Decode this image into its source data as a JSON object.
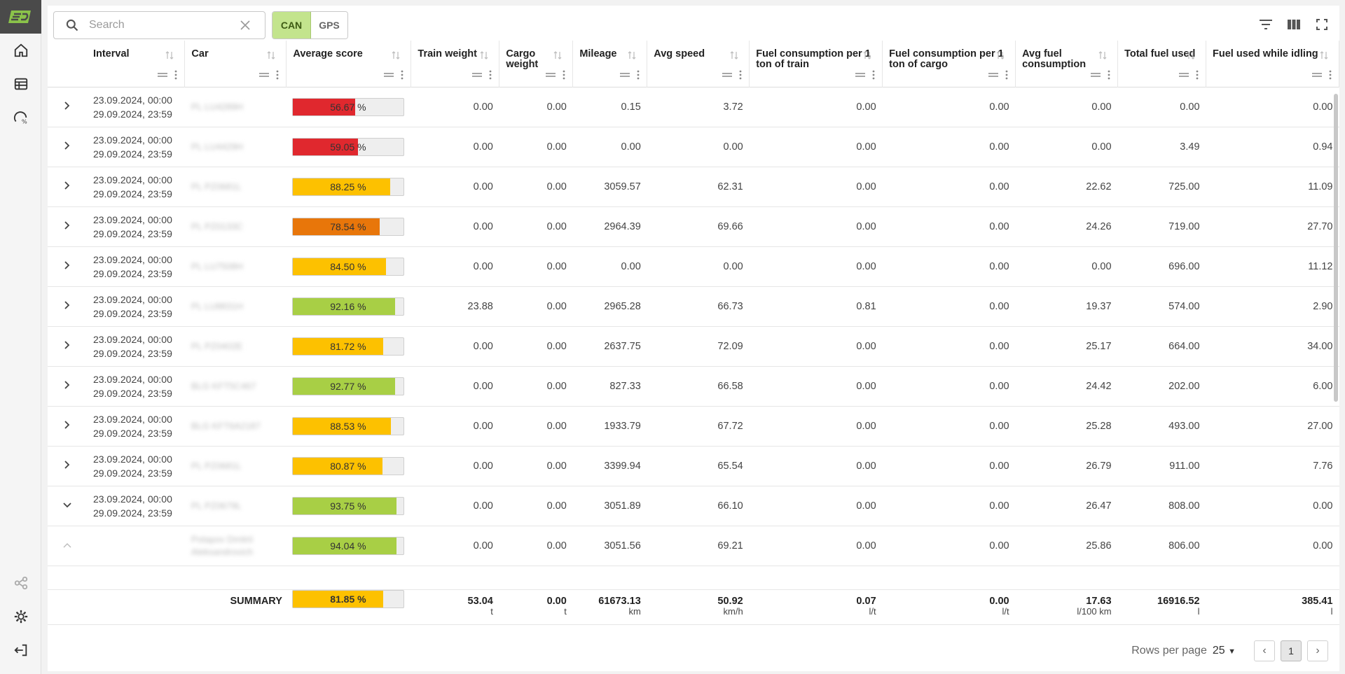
{
  "search": {
    "placeholder": "Search"
  },
  "mode_toggle": {
    "can_label": "CAN",
    "gps_label": "GPS"
  },
  "columns": [
    "Interval",
    "Car",
    "Average score",
    "Train weight",
    "Cargo weight",
    "Mileage",
    "Avg speed",
    "Fuel consumption per 1 ton of train",
    "Fuel consumption per 1 ton of cargo",
    "Avg fuel consumption",
    "Total fuel used",
    "Fuel used while idling"
  ],
  "colors": {
    "red": "#e0282e",
    "orange": "#e8760a",
    "yellow": "#fdc100",
    "green": "#a8cf45"
  },
  "rows": [
    {
      "start": "23.09.2024, 00:00",
      "end": "29.09.2024, 23:59",
      "car": "PL LU4289H",
      "score": 56.67,
      "score_label": "56.67 %",
      "color": "red",
      "train": "0.00",
      "cargo": "0.00",
      "mileage": "0.15",
      "speed": "3.72",
      "fc_train": "0.00",
      "fc_cargo": "0.00",
      "avg_fuel": "0.00",
      "total_fuel": "0.00",
      "idle": "0.00"
    },
    {
      "start": "23.09.2024, 00:00",
      "end": "29.09.2024, 23:59",
      "car": "PL LU4429H",
      "score": 59.05,
      "score_label": "59.05 %",
      "color": "red",
      "train": "0.00",
      "cargo": "0.00",
      "mileage": "0.00",
      "speed": "0.00",
      "fc_train": "0.00",
      "fc_cargo": "0.00",
      "avg_fuel": "0.00",
      "total_fuel": "3.49",
      "idle": "0.94"
    },
    {
      "start": "23.09.2024, 00:00",
      "end": "29.09.2024, 23:59",
      "car": "PL PZ0681L",
      "score": 88.25,
      "score_label": "88.25 %",
      "color": "yellow",
      "train": "0.00",
      "cargo": "0.00",
      "mileage": "3059.57",
      "speed": "62.31",
      "fc_train": "0.00",
      "fc_cargo": "0.00",
      "avg_fuel": "22.62",
      "total_fuel": "725.00",
      "idle": "11.09"
    },
    {
      "start": "23.09.2024, 00:00",
      "end": "29.09.2024, 23:59",
      "car": "PL PZ0133C",
      "score": 78.54,
      "score_label": "78.54 %",
      "color": "orange",
      "train": "0.00",
      "cargo": "0.00",
      "mileage": "2964.39",
      "speed": "69.66",
      "fc_train": "0.00",
      "fc_cargo": "0.00",
      "avg_fuel": "24.26",
      "total_fuel": "719.00",
      "idle": "27.70"
    },
    {
      "start": "23.09.2024, 00:00",
      "end": "29.09.2024, 23:59",
      "car": "PL LU7508H",
      "score": 84.5,
      "score_label": "84.50 %",
      "color": "yellow",
      "train": "0.00",
      "cargo": "0.00",
      "mileage": "0.00",
      "speed": "0.00",
      "fc_train": "0.00",
      "fc_cargo": "0.00",
      "avg_fuel": "0.00",
      "total_fuel": "696.00",
      "idle": "11.12"
    },
    {
      "start": "23.09.2024, 00:00",
      "end": "29.09.2024, 23:59",
      "car": "PL LU8831H",
      "score": 92.16,
      "score_label": "92.16 %",
      "color": "green",
      "train": "23.88",
      "cargo": "0.00",
      "mileage": "2965.28",
      "speed": "66.73",
      "fc_train": "0.81",
      "fc_cargo": "0.00",
      "avg_fuel": "19.37",
      "total_fuel": "574.00",
      "idle": "2.90"
    },
    {
      "start": "23.09.2024, 00:00",
      "end": "29.09.2024, 23:59",
      "car": "PL PZ0402E",
      "score": 81.72,
      "score_label": "81.72 %",
      "color": "yellow",
      "train": "0.00",
      "cargo": "0.00",
      "mileage": "2637.75",
      "speed": "72.09",
      "fc_train": "0.00",
      "fc_cargo": "0.00",
      "avg_fuel": "25.17",
      "total_fuel": "664.00",
      "idle": "34.00"
    },
    {
      "start": "23.09.2024, 00:00",
      "end": "29.09.2024, 23:59",
      "car": "BLG KFT5C467",
      "score": 92.77,
      "score_label": "92.77 %",
      "color": "green",
      "train": "0.00",
      "cargo": "0.00",
      "mileage": "827.33",
      "speed": "66.58",
      "fc_train": "0.00",
      "fc_cargo": "0.00",
      "avg_fuel": "24.42",
      "total_fuel": "202.00",
      "idle": "6.00"
    },
    {
      "start": "23.09.2024, 00:00",
      "end": "29.09.2024, 23:59",
      "car": "BLG KFT6A2187",
      "score": 88.53,
      "score_label": "88.53 %",
      "color": "yellow",
      "train": "0.00",
      "cargo": "0.00",
      "mileage": "1933.79",
      "speed": "67.72",
      "fc_train": "0.00",
      "fc_cargo": "0.00",
      "avg_fuel": "25.28",
      "total_fuel": "493.00",
      "idle": "27.00"
    },
    {
      "start": "23.09.2024, 00:00",
      "end": "29.09.2024, 23:59",
      "car": "PL PZ0681L",
      "score": 80.87,
      "score_label": "80.87 %",
      "color": "yellow",
      "train": "0.00",
      "cargo": "0.00",
      "mileage": "3399.94",
      "speed": "65.54",
      "fc_train": "0.00",
      "fc_cargo": "0.00",
      "avg_fuel": "26.79",
      "total_fuel": "911.00",
      "idle": "7.76"
    },
    {
      "start": "23.09.2024, 00:00",
      "end": "29.09.2024, 23:59",
      "car": "PL PZ0679L",
      "score": 93.75,
      "score_label": "93.75 %",
      "color": "green",
      "train": "0.00",
      "cargo": "0.00",
      "mileage": "3051.89",
      "speed": "66.10",
      "fc_train": "0.00",
      "fc_cargo": "0.00",
      "avg_fuel": "26.47",
      "total_fuel": "808.00",
      "idle": "0.00",
      "expanded": true
    }
  ],
  "subrow": {
    "driver": "Potapov Dmitrii Aleksandrovich",
    "score": 94.04,
    "score_label": "94.04 %",
    "color": "green",
    "train": "0.00",
    "cargo": "0.00",
    "mileage": "3051.56",
    "speed": "69.21",
    "fc_train": "0.00",
    "fc_cargo": "0.00",
    "avg_fuel": "25.86",
    "total_fuel": "806.00",
    "idle": "0.00"
  },
  "summary": {
    "label": "SUMMARY",
    "score": 81.85,
    "score_label": "81.85 %",
    "color": "yellow",
    "train": "53.04",
    "train_unit": "t",
    "cargo": "0.00",
    "cargo_unit": "t",
    "mileage": "61673.13",
    "mileage_unit": "km",
    "speed": "50.92",
    "speed_unit": "km/h",
    "fc_train": "0.07",
    "fc_train_unit": "l/t",
    "fc_cargo": "0.00",
    "fc_cargo_unit": "l/t",
    "avg_fuel": "17.63",
    "avg_fuel_unit": "l/100 km",
    "total_fuel": "16916.52",
    "total_fuel_unit": "l",
    "idle": "385.41",
    "idle_unit": "l"
  },
  "pagination": {
    "rows_label": "Rows per page",
    "rows_value": "25",
    "page": "1"
  }
}
